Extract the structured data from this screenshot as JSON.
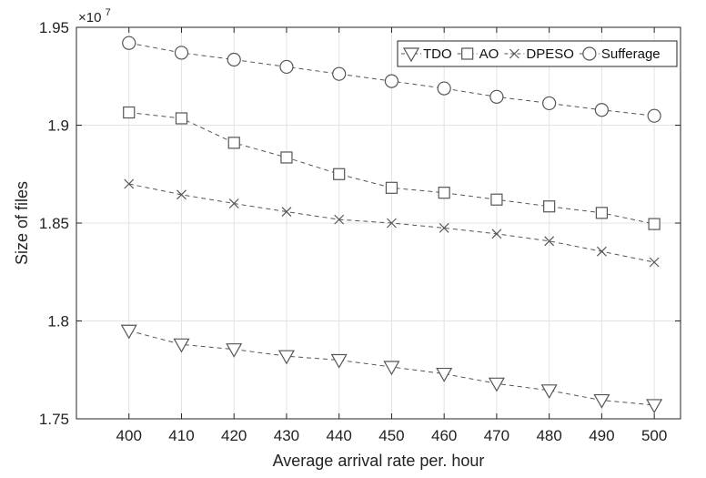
{
  "chart_data": {
    "type": "line",
    "x": [
      400,
      410,
      420,
      430,
      440,
      450,
      460,
      470,
      480,
      490,
      500
    ],
    "series": [
      {
        "name": "TDO",
        "marker": "triangle-down",
        "values": [
          17950000,
          17880000,
          17855000,
          17820000,
          17800000,
          17765000,
          17730000,
          17680000,
          17645000,
          17595000,
          17570000
        ]
      },
      {
        "name": "AO",
        "marker": "square",
        "values": [
          19065000,
          19035000,
          18910000,
          18835000,
          18750000,
          18680000,
          18655000,
          18620000,
          18585000,
          18552000,
          18495000
        ]
      },
      {
        "name": "DPESO",
        "marker": "x",
        "values": [
          18700000,
          18645000,
          18600000,
          18558000,
          18518000,
          18500000,
          18475000,
          18445000,
          18408000,
          18355000,
          18300000
        ]
      },
      {
        "name": "Sufferage",
        "marker": "circle",
        "values": [
          19420000,
          19370000,
          19335000,
          19298000,
          19262000,
          19225000,
          19188000,
          19145000,
          19112000,
          19078000,
          19048000
        ]
      }
    ],
    "xlabel": "Average arrival rate per. hour",
    "ylabel": "Size of files",
    "y_exponent_label": "×10",
    "y_exponent_power": "7",
    "xlim": [
      390,
      505
    ],
    "ylim": [
      17500000,
      19500000
    ],
    "x_ticks": [
      400,
      410,
      420,
      430,
      440,
      450,
      460,
      470,
      480,
      490,
      500
    ],
    "y_ticks": [
      17500000,
      18000000,
      18500000,
      19000000,
      19500000
    ],
    "y_tick_labels": [
      "1.75",
      "1.8",
      "1.85",
      "1.9",
      "1.95"
    ],
    "grid": true,
    "legend_position": "top-right",
    "colors": {
      "line": "#555555",
      "grid": "#e3e3e3",
      "axis": "#262626",
      "background": "#ffffff"
    }
  }
}
